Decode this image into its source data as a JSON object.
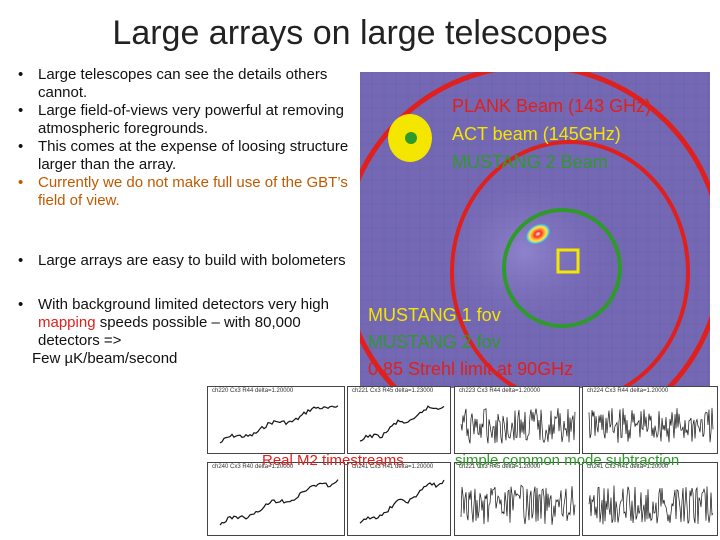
{
  "slide": {
    "title": "Large arrays on large telescopes",
    "bullets_top": [
      "Large telescopes can see the details others cannot.",
      "Large field-of-views very powerful at removing atmospheric foregrounds.",
      "This comes at the expense of loosing structure larger than the array."
    ],
    "bullet_orange": "Currently we do not make full use of the GBT’s field of view.",
    "bullet_arrays": "Large arrays are easy to build with bolometers",
    "bullet_detectors": {
      "pre": "With background limited detectors very high ",
      "highlight": "mapping",
      "post": " speeds possible – with 80,000 detectors =>",
      "few": "Few µK/beam/second"
    },
    "bullet_marker": "•"
  },
  "beam_labels": {
    "plank": "PLANK Beam (143 GHz)",
    "act": "ACT beam (145GHz)",
    "mustang2_beam": "MUSTANG 2 Beam"
  },
  "fov_labels": {
    "mustang1": "MUSTANG 1 fov",
    "mustang2": "MUSTANG 2 fov",
    "strehl": "0.85 Strehl limit at 90GHz"
  },
  "panels": {
    "left_titles": [
      "ch220 Cx3 R44 delta=1.20000",
      "ch221 Cx3 R45 delta=1.23000",
      "ch240 Cx3 R40 delta=1.20000",
      "ch241 Cx3 R41 delta=1.20000"
    ],
    "right_titles": [
      "ch223 Cx3 R44 delta=1.20000",
      "ch224 Cx3 R44 delta=1.20000",
      "ch221 Cx3 R45 delta=1.20000",
      "ch241 Cx3 R41 delta=1.20000"
    ],
    "caption_left": "Real M2 timestreams",
    "caption_right": "simple common mode subtraction"
  },
  "colors": {
    "red": "#e0201c",
    "green": "#2e9a2a",
    "yellow": "#f5e600",
    "orange_text": "#c05a00",
    "map_bg": "#7468b4"
  }
}
